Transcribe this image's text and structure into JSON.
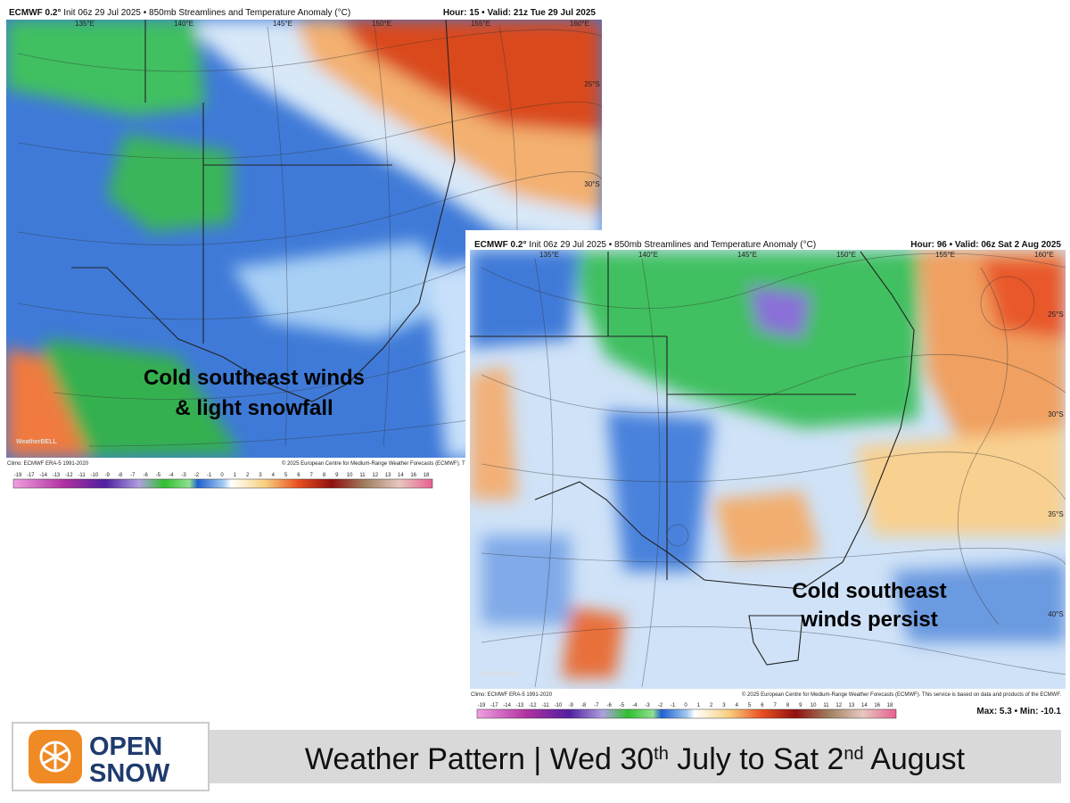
{
  "maps": [
    {
      "model": "ECMWF 0.2°",
      "subtitle": "Init 06z 29 Jul 2025 • 850mb Streamlines and Temperature Anomaly (°C)",
      "valid": "Hour: 15 • Valid: 21z Tue 29 Jul 2025",
      "lon_labels": [
        "135°E",
        "140°E",
        "145°E",
        "150°E",
        "155°E",
        "160°E"
      ],
      "lat_labels": [
        "25°S",
        "30°S"
      ],
      "annotation": [
        "Cold southeast winds",
        "& light snowfall"
      ],
      "watermark": "WeatherBELL",
      "climo": "Climo: ECMWF ERA-5 1991-2020",
      "copyright": "© 2025 European Centre for Medium-Range Weather Forecasts (ECMWF). Th",
      "scale": [
        -19,
        -17,
        -14,
        -13,
        -12,
        -11,
        -10,
        -9,
        -8,
        -7,
        -6,
        -5,
        -4,
        -3,
        -2,
        -1,
        0,
        1,
        2,
        3,
        4,
        5,
        6,
        7,
        8,
        9,
        10,
        11,
        12,
        13,
        14,
        16,
        18
      ]
    },
    {
      "model": "ECMWF 0.2°",
      "subtitle": "Init 06z 29 Jul 2025 • 850mb Streamlines and Temperature Anomaly (°C)",
      "valid": "Hour: 96 • Valid: 06z Sat 2 Aug 2025",
      "lon_labels": [
        "135°E",
        "140°E",
        "145°E",
        "150°E",
        "155°E",
        "160°E"
      ],
      "lat_labels": [
        "25°S",
        "30°S",
        "35°S",
        "40°S"
      ],
      "annotation": [
        "Cold southeast",
        "winds persist"
      ],
      "watermark": "WeatherBELL",
      "climo": "Climo: ECMWF ERA-5 1991-2020",
      "copyright": "© 2025 European Centre for Medium-Range Weather Forecasts (ECMWF). This service is based on data and products of the ECMWF.",
      "scale": [
        -19,
        -17,
        -14,
        -13,
        -12,
        -11,
        -10,
        -9,
        -8,
        -7,
        -6,
        -5,
        -4,
        -3,
        -2,
        -1,
        0,
        1,
        2,
        3,
        4,
        5,
        6,
        7,
        8,
        9,
        10,
        11,
        12,
        13,
        14,
        16,
        18
      ],
      "max_min": "Max: 5.3 • Min: -10.1"
    }
  ],
  "footer": {
    "logo": [
      "OPEN",
      "SNOW"
    ],
    "title": [
      {
        "text": "Weather Pattern | Wed 30",
        "sup": false
      },
      {
        "text": "th",
        "sup": true
      },
      {
        "text": " July to Sat 2",
        "sup": false
      },
      {
        "text": "nd",
        "sup": true
      },
      {
        "text": " August",
        "sup": false
      }
    ]
  }
}
